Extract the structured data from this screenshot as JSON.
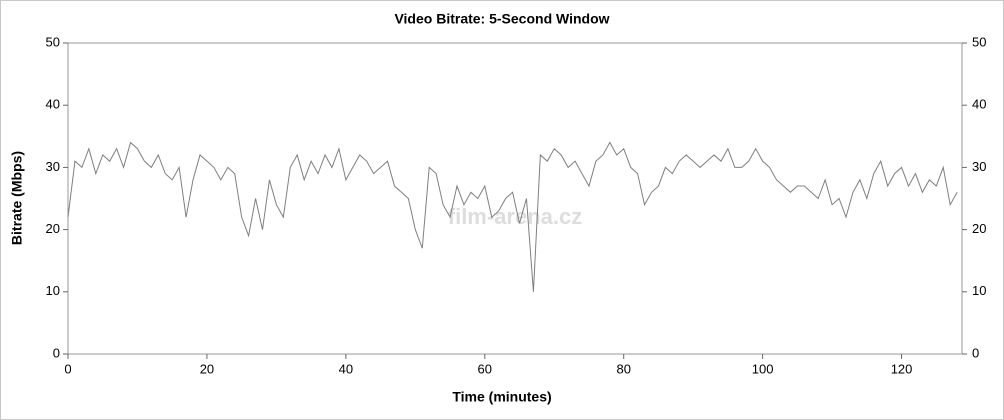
{
  "chart_data": {
    "type": "line",
    "title": "Video Bitrate: 5-Second Window",
    "x_label": "Time (minutes)",
    "y_label": "Bitrate (Mbps)",
    "watermark": "film-arena.cz",
    "xlim": [
      0,
      128.7
    ],
    "xticks": [
      0,
      20,
      40,
      60,
      80,
      100,
      120
    ],
    "ylim": [
      0,
      50
    ],
    "yticks": [
      0,
      10,
      20,
      30,
      40,
      50
    ],
    "y2lim": [
      0,
      50
    ],
    "y2ticks": [
      0,
      10,
      20,
      30,
      40,
      50
    ],
    "x": [
      0,
      1,
      2,
      3,
      4,
      5,
      6,
      7,
      8,
      9,
      10,
      11,
      12,
      13,
      14,
      15,
      16,
      17,
      18,
      19,
      20,
      21,
      22,
      23,
      24,
      25,
      26,
      27,
      28,
      29,
      30,
      31,
      32,
      33,
      34,
      35,
      36,
      37,
      38,
      39,
      40,
      41,
      42,
      43,
      44,
      45,
      46,
      47,
      48,
      49,
      50,
      51,
      52,
      53,
      54,
      55,
      56,
      57,
      58,
      59,
      60,
      61,
      62,
      63,
      64,
      65,
      66,
      67,
      68,
      69,
      70,
      71,
      72,
      73,
      74,
      75,
      76,
      77,
      78,
      79,
      80,
      81,
      82,
      83,
      84,
      85,
      86,
      87,
      88,
      89,
      90,
      91,
      92,
      93,
      94,
      95,
      96,
      97,
      98,
      99,
      100,
      101,
      102,
      103,
      104,
      105,
      106,
      107,
      108,
      109,
      110,
      111,
      112,
      113,
      114,
      115,
      116,
      117,
      118,
      119,
      120,
      121,
      122,
      123,
      124,
      125,
      126,
      127,
      128
    ],
    "series": [
      {
        "name": "Bitrate",
        "color": "#7f7f7f",
        "values": [
          22,
          31,
          30,
          33,
          29,
          32,
          31,
          33,
          30,
          34,
          33,
          31,
          30,
          32,
          29,
          28,
          30,
          22,
          28,
          32,
          31,
          30,
          28,
          30,
          29,
          22,
          19,
          25,
          20,
          28,
          24,
          22,
          30,
          32,
          28,
          31,
          29,
          32,
          30,
          33,
          28,
          30,
          32,
          31,
          29,
          30,
          31,
          27,
          26,
          25,
          20,
          17,
          30,
          29,
          24,
          22,
          27,
          24,
          26,
          25,
          27,
          22,
          23,
          25,
          26,
          21,
          25,
          10,
          32,
          31,
          33,
          32,
          30,
          31,
          29,
          27,
          31,
          32,
          34,
          32,
          33,
          30,
          29,
          24,
          26,
          27,
          30,
          29,
          31,
          32,
          31,
          30,
          31,
          32,
          31,
          33,
          30,
          30,
          31,
          33,
          31,
          30,
          28,
          27,
          26,
          27,
          27,
          26,
          25,
          28,
          24,
          25,
          22,
          26,
          28,
          25,
          29,
          31,
          27,
          29,
          30,
          27,
          29,
          26,
          28,
          27,
          30,
          24,
          26
        ]
      }
    ]
  }
}
